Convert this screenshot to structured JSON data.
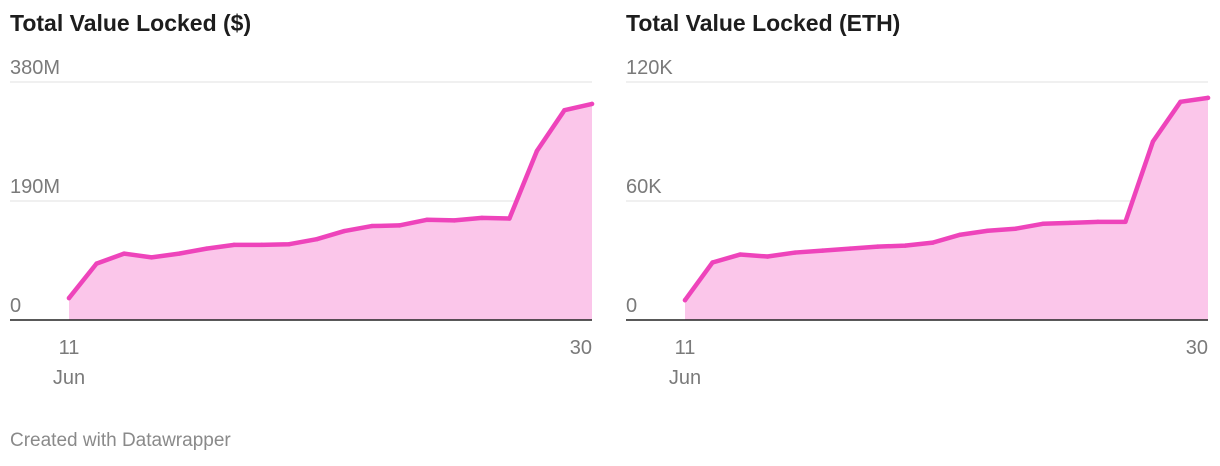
{
  "footer": {
    "credit": "Created with Datawrapper"
  },
  "colors": {
    "line": "#ee44bb",
    "fill": "#fbc6ea",
    "grid": "#e6e6e6",
    "axis": "#222222",
    "text": "#7a7a7a"
  },
  "chart_data": [
    {
      "type": "area",
      "title": "Total Value Locked ($)",
      "x": [
        11,
        12,
        13,
        14,
        15,
        16,
        17,
        18,
        19,
        20,
        21,
        22,
        23,
        24,
        25,
        26,
        27,
        28,
        29,
        30
      ],
      "y": [
        35,
        90,
        106,
        100,
        106,
        114,
        120,
        120,
        121,
        129,
        142,
        150,
        151,
        160,
        159,
        163,
        162,
        270,
        335,
        345
      ],
      "ylim": [
        0,
        380
      ],
      "y_ticks": [
        {
          "value": 0,
          "label": "0"
        },
        {
          "value": 190,
          "label": "190M"
        },
        {
          "value": 380,
          "label": "380M"
        }
      ],
      "x_ticks": [
        {
          "value": 11,
          "label": "11",
          "sublabel": "Jun"
        },
        {
          "value": 30,
          "label": "30",
          "sublabel": ""
        }
      ],
      "ylabel": "$",
      "xlabel": ""
    },
    {
      "type": "area",
      "title": "Total Value Locked (ETH)",
      "x": [
        11,
        12,
        13,
        14,
        15,
        16,
        17,
        18,
        19,
        20,
        21,
        22,
        23,
        24,
        25,
        26,
        27,
        28,
        29,
        30
      ],
      "y": [
        10,
        29,
        33,
        32,
        34,
        35,
        36,
        37,
        37.5,
        39,
        43,
        45,
        46,
        48.5,
        49,
        49.5,
        49.5,
        90,
        110,
        112
      ],
      "ylim": [
        0,
        120
      ],
      "y_ticks": [
        {
          "value": 0,
          "label": "0"
        },
        {
          "value": 60,
          "label": "60K"
        },
        {
          "value": 120,
          "label": "120K"
        }
      ],
      "x_ticks": [
        {
          "value": 11,
          "label": "11",
          "sublabel": "Jun"
        },
        {
          "value": 30,
          "label": "30",
          "sublabel": ""
        }
      ],
      "ylabel": "ETH",
      "xlabel": ""
    }
  ]
}
